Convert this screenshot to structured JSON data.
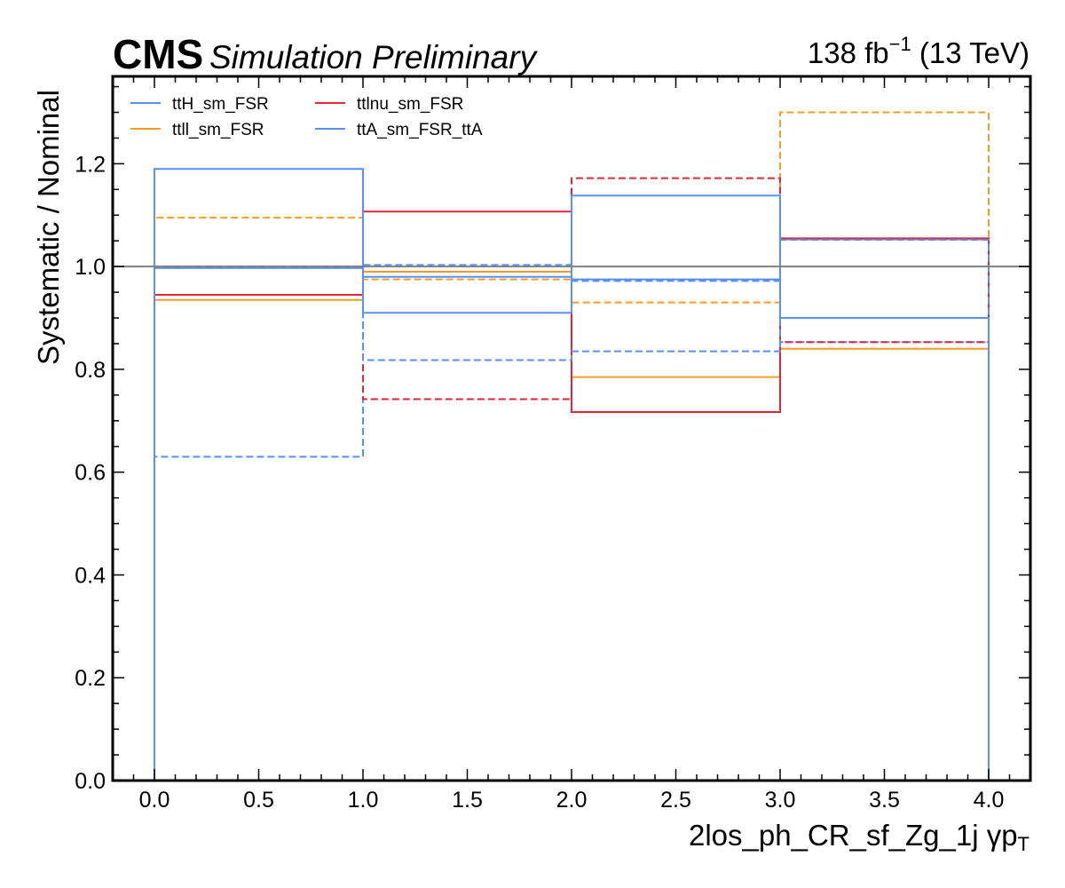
{
  "header": {
    "cms": "CMS",
    "status": "Simulation Preliminary",
    "lumi_prefix": "138 fb",
    "lumi_exp": "−1",
    "lumi_suffix": " (13 TeV)"
  },
  "chart_data": {
    "type": "step",
    "xlabel": "2los_ph_CR_sf_Zg_1j   γp",
    "xlabel_sub": "T",
    "ylabel": "Systematic / Nominal",
    "xlim": [
      -0.2,
      4.2
    ],
    "ylim": [
      0.0,
      1.37
    ],
    "x_ticks": [
      0.0,
      0.5,
      1.0,
      1.5,
      2.0,
      2.5,
      3.0,
      3.5,
      4.0
    ],
    "x_tick_labels": [
      "0.0",
      "0.5",
      "1.0",
      "1.5",
      "2.0",
      "2.5",
      "3.0",
      "3.5",
      "4.0"
    ],
    "y_ticks": [
      0.0,
      0.2,
      0.4,
      0.6,
      0.8,
      1.0,
      1.2
    ],
    "y_tick_labels": [
      "0.0",
      "0.2",
      "0.4",
      "0.6",
      "0.8",
      "1.0",
      "1.2"
    ],
    "bin_edges": [
      0,
      1,
      2,
      3,
      4
    ],
    "reference_line": 1.0,
    "legend_position": "top-left",
    "series": [
      {
        "name": "ttH_sm_FSR",
        "color": "#5790fc",
        "values": [
          0.997,
          0.98,
          0.975,
          1.053
        ]
      },
      {
        "name": "",
        "color": "#5790fc",
        "dashed": true,
        "values": [
          0.63,
          1.003,
          0.972,
          0.853
        ]
      },
      {
        "name": "ttll_sm_FSR",
        "color": "#f89c20",
        "values": [
          0.935,
          0.99,
          0.785,
          0.84
        ]
      },
      {
        "name": "",
        "color": "#f89c20",
        "dashed": true,
        "values": [
          1.095,
          0.975,
          0.93,
          1.3
        ]
      },
      {
        "name": "ttlnu_sm_FSR",
        "color": "#e42536",
        "values": [
          0.945,
          1.107,
          0.717,
          1.055
        ]
      },
      {
        "name": "",
        "color": "#e42536",
        "dashed": true,
        "values": [
          1.0,
          0.742,
          1.172,
          0.853
        ]
      },
      {
        "name": "ttA_sm_FSR_ttA",
        "color": "#5790fc",
        "values": [
          1.19,
          0.91,
          1.138,
          0.9
        ]
      },
      {
        "name": "",
        "color": "#5790fc",
        "dashed": true,
        "values": [
          1.0,
          0.818,
          0.835,
          1.052
        ]
      }
    ]
  }
}
